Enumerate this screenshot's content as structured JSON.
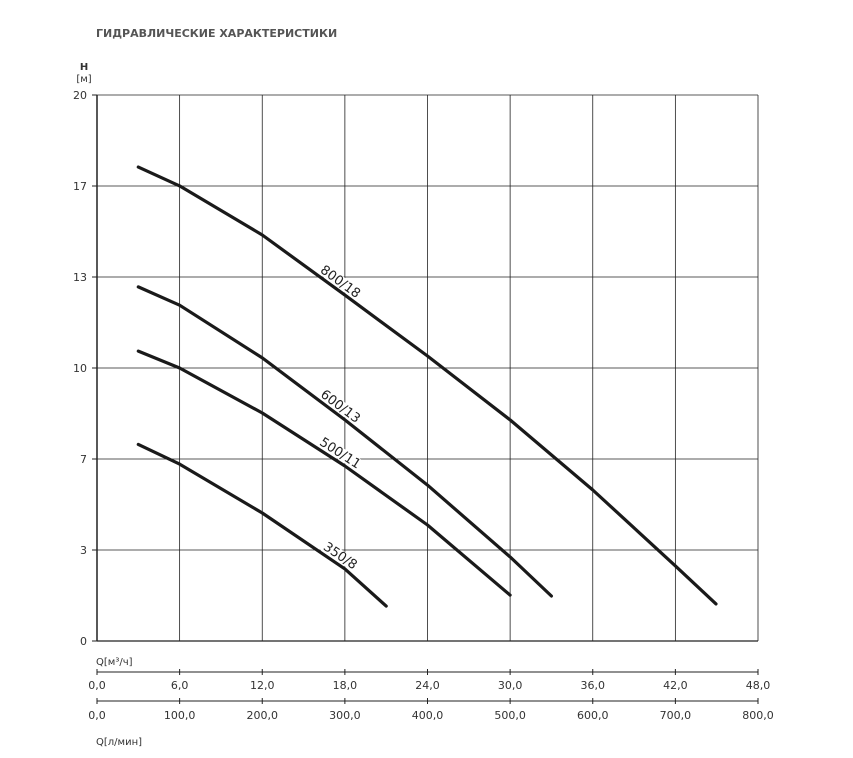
{
  "chart_data": {
    "type": "line",
    "title": "ГИДРАВЛИЧЕСКИЕ ХАРАКТЕРИСТИКИ",
    "ylabel": "H",
    "yunit": "[м]",
    "xlabel": "Q[м³/ч]",
    "x2label": "Q[л/мин]",
    "xlim": [
      0,
      48
    ],
    "xticks": [
      {
        "value": 0,
        "label": "0,0"
      },
      {
        "value": 6,
        "label": "6,0"
      },
      {
        "value": 12,
        "label": "12,0"
      },
      {
        "value": 18,
        "label": "18,0"
      },
      {
        "value": 24,
        "label": "24,0"
      },
      {
        "value": 30,
        "label": "30,0"
      },
      {
        "value": 36,
        "label": "36,0"
      },
      {
        "value": 42,
        "label": "42,0"
      },
      {
        "value": 48,
        "label": "48,0"
      }
    ],
    "x2lim": [
      0,
      800
    ],
    "x2ticks": [
      {
        "value": 0,
        "label": "0,0"
      },
      {
        "value": 100,
        "label": "100,0"
      },
      {
        "value": 200,
        "label": "200,0"
      },
      {
        "value": 300,
        "label": "300,0"
      },
      {
        "value": 400,
        "label": "400,0"
      },
      {
        "value": 500,
        "label": "500,0"
      },
      {
        "value": 600,
        "label": "600,0"
      },
      {
        "value": 700,
        "label": "700,0"
      },
      {
        "value": 800,
        "label": "800,0"
      }
    ],
    "ylim": [
      0,
      20
    ],
    "yticks": [
      0,
      {
        "value": 3.333,
        "label": "3"
      },
      {
        "value": 6.667,
        "label": "7"
      },
      10,
      {
        "value": 13.333,
        "label": "13"
      },
      {
        "value": 16.667,
        "label": "17"
      },
      20
    ],
    "grid": true,
    "series": [
      {
        "name": "800/18",
        "color": "#1a1a1a",
        "x": [
          3,
          6,
          12,
          18,
          24,
          30,
          36,
          42,
          44.95
        ],
        "values": [
          17.36,
          16.67,
          14.87,
          12.67,
          10.44,
          8.1,
          5.53,
          2.75,
          1.36
        ]
      },
      {
        "name": "600/13",
        "color": "#1a1a1a",
        "x": [
          3,
          6,
          12,
          18,
          24,
          30,
          33
        ],
        "values": [
          12.97,
          12.3,
          10.37,
          8.1,
          5.71,
          3.08,
          1.65
        ]
      },
      {
        "name": "500/11",
        "color": "#1a1a1a",
        "x": [
          3,
          6,
          12,
          18,
          24,
          30
        ],
        "values": [
          10.62,
          10.0,
          8.35,
          6.41,
          4.25,
          1.68
        ]
      },
      {
        "name": "350/8",
        "color": "#1a1a1a",
        "x": [
          3,
          6,
          12,
          18,
          21
        ],
        "values": [
          7.2,
          6.48,
          4.69,
          2.64,
          1.28
        ]
      }
    ]
  }
}
